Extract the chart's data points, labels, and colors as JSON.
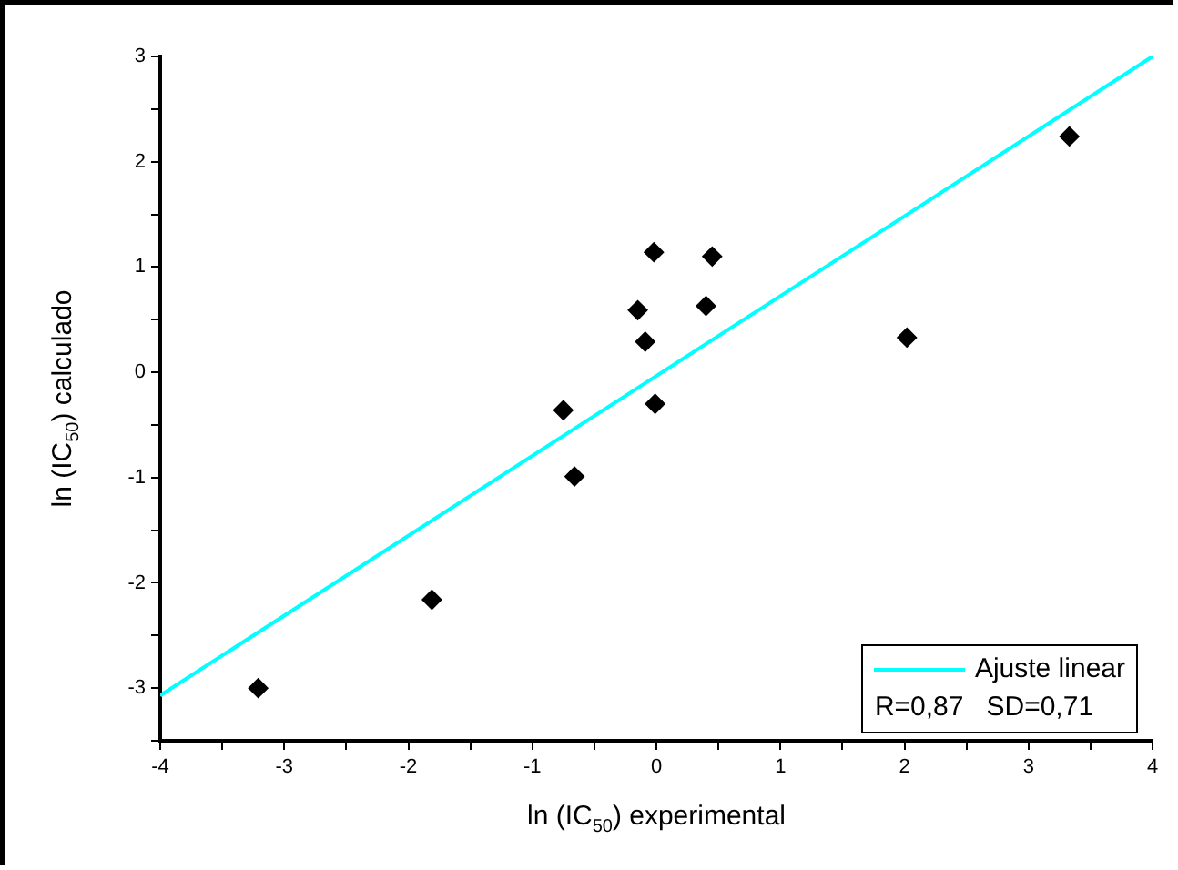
{
  "chart_data": {
    "type": "scatter",
    "xlabel": "ln (IC$_{50}$) experimental",
    "ylabel": "ln (IC$_{50}$) calculado",
    "x": [
      -3.21,
      -1.81,
      -0.75,
      -0.66,
      -0.15,
      -0.09,
      -0.02,
      -0.01,
      0.4,
      0.45,
      2.02,
      3.33
    ],
    "series": [
      {
        "color": "#000000",
        "marker": "diamond",
        "values": [
          -3.0,
          -2.16,
          -0.36,
          -0.99,
          0.59,
          0.29,
          1.14,
          -0.3,
          0.63,
          1.1,
          0.33,
          2.24
        ]
      },
      {
        "type": "line",
        "name": "Ajuste linear",
        "color": "#00ffff",
        "marker": "none",
        "line_style": "solid",
        "x": [
          -4,
          4
        ],
        "values": [
          -3.07,
          3.0
        ]
      }
    ],
    "xlim": [
      -4,
      4
    ],
    "ylim": [
      -3.5,
      3
    ],
    "xticks": [
      -4,
      {
        "value": -3.5,
        "label": null
      },
      -3,
      {
        "value": -2.5,
        "label": null
      },
      -2,
      {
        "value": -1.5,
        "label": null
      },
      -1,
      {
        "value": -0.5,
        "label": null
      },
      0,
      {
        "value": 0.5,
        "label": null
      },
      1,
      {
        "value": 1.5,
        "label": null
      },
      2,
      {
        "value": 2.5,
        "label": null
      },
      3,
      {
        "value": 3.5,
        "label": null
      },
      4
    ],
    "yticks": [
      {
        "value": -3.5,
        "label": null
      },
      -3,
      {
        "value": -2.5,
        "label": null
      },
      -2,
      {
        "value": -1.5,
        "label": null
      },
      -1,
      {
        "value": -0.5,
        "label": null
      },
      0,
      {
        "value": 0.5,
        "label": null
      },
      1,
      {
        "value": 1.5,
        "label": null
      },
      2,
      {
        "value": 2.5,
        "label": null
      },
      3
    ],
    "grid": false,
    "legend": "bottom right",
    "annotations": [
      "R=0,87   SD=0,71"
    ]
  }
}
